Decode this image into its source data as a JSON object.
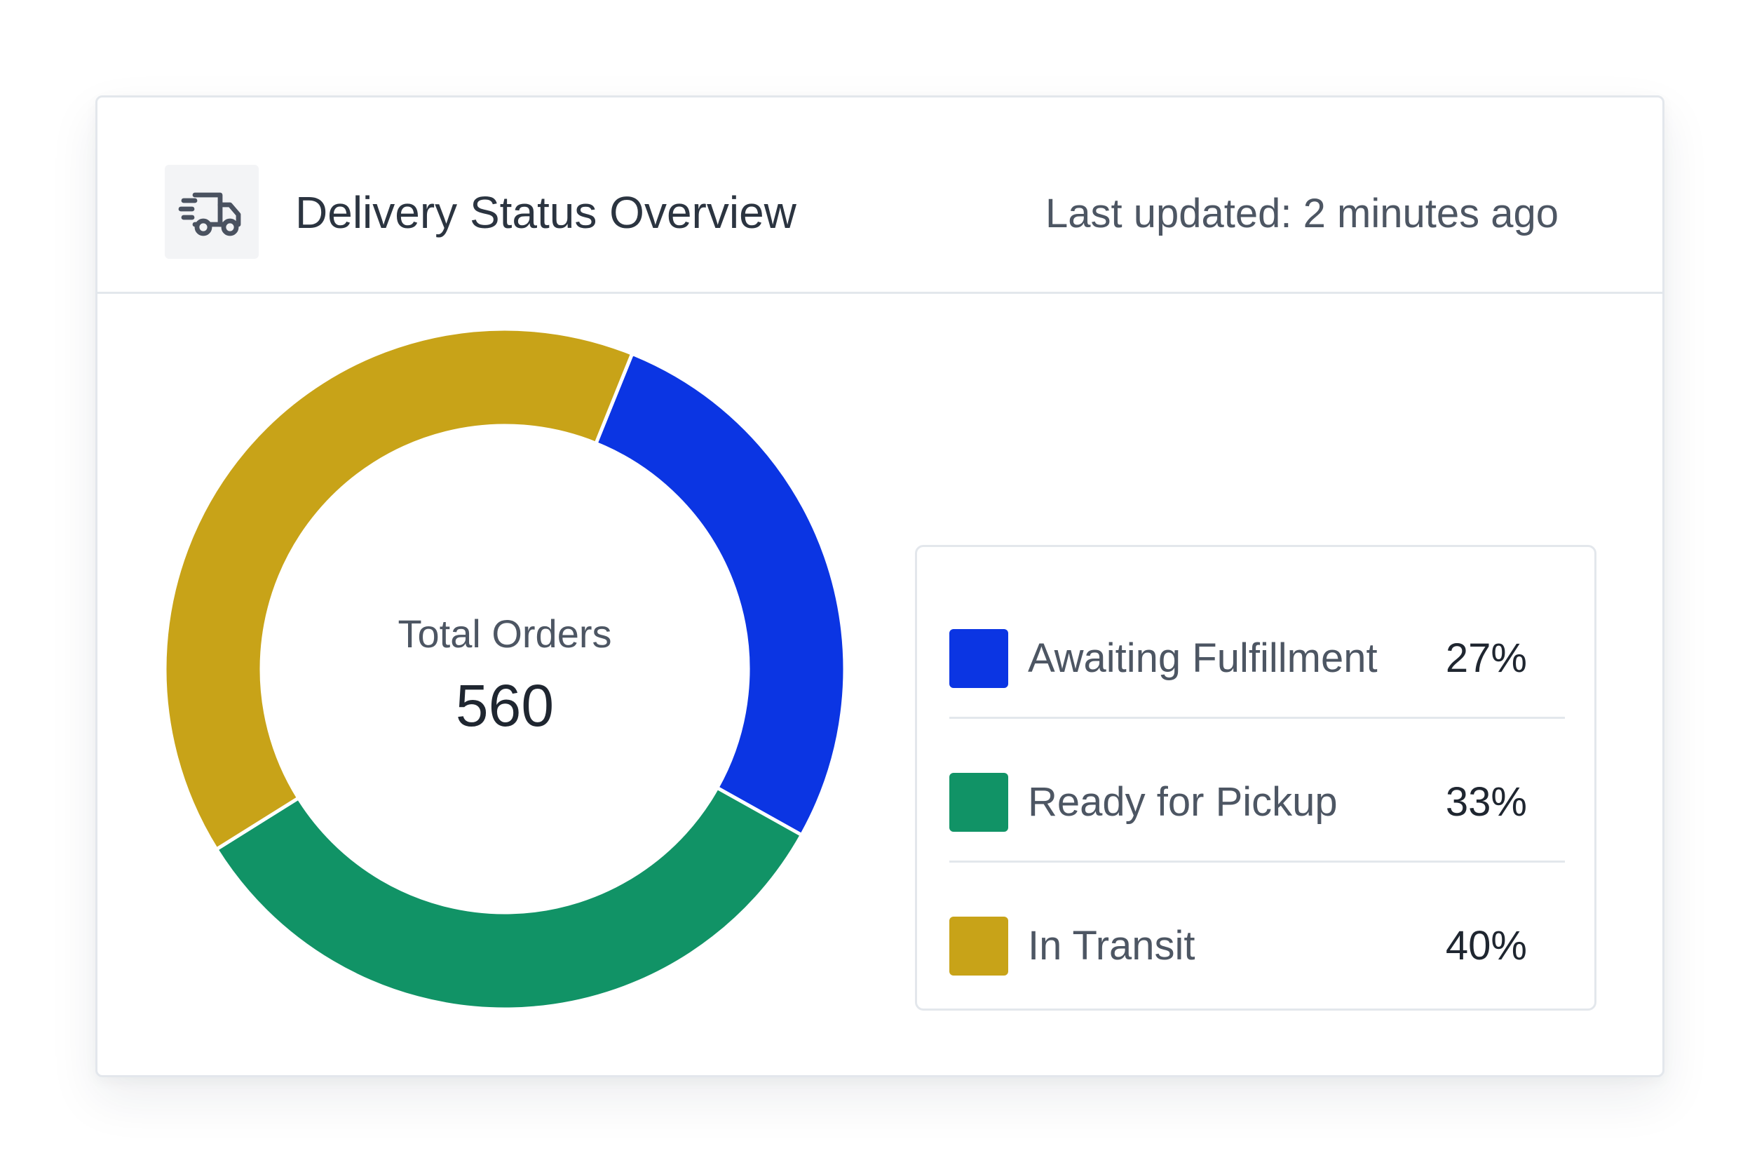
{
  "header": {
    "title": "Delivery Status Overview",
    "last_updated": "Last updated: 2 minutes ago",
    "icon": "truck-icon"
  },
  "center": {
    "caption": "Total Orders",
    "value": "560"
  },
  "colors": {
    "awaiting": "#0b35e3",
    "ready": "#119366",
    "transit": "#c8a318",
    "text_primary": "#1f2630",
    "text_secondary": "#4d5663",
    "border": "#e3e7ec"
  },
  "legend": [
    {
      "label": "Awaiting Fulfillment",
      "percent": "27%",
      "color": "#0b35e3"
    },
    {
      "label": "Ready for Pickup",
      "percent": "33%",
      "color": "#119366"
    },
    {
      "label": "In Transit",
      "percent": "40%",
      "color": "#c8a318"
    }
  ],
  "chart_data": {
    "type": "pie",
    "variant": "donut",
    "title": "Delivery Status Overview",
    "total": 560,
    "categories": [
      "Awaiting Fulfillment",
      "Ready for Pickup",
      "In Transit"
    ],
    "values": [
      27,
      33,
      40
    ],
    "unit": "%",
    "colors": [
      "#0b35e3",
      "#119366",
      "#c8a318"
    ],
    "start_angle_deg": 22,
    "direction": "clockwise",
    "legend_position": "right"
  }
}
